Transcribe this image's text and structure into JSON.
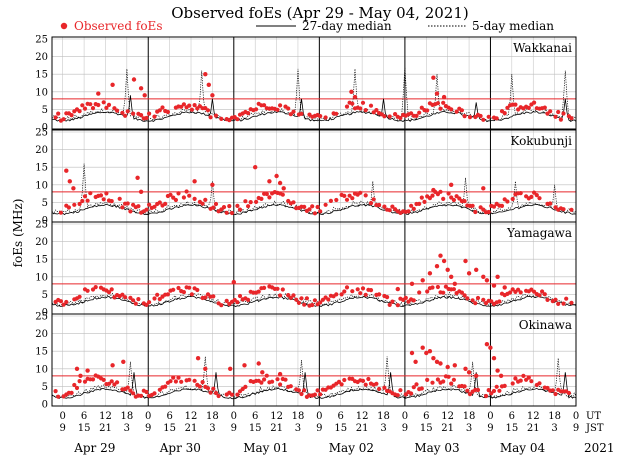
{
  "chart_data": {
    "type": "scatter",
    "title": "Observed foEs (Apr 29 - May 04, 2021)",
    "ylabel": "foEs (MHz)",
    "legend": {
      "observed": "Observed foEs",
      "median27": "27-day median",
      "median5": "5-day median"
    },
    "colors": {
      "observed": "#e8262a",
      "reference_line": "#e8262a",
      "median27": "#000000",
      "median5": "#000000",
      "grid": "#bdbdbd"
    },
    "ylim": [
      0,
      25
    ],
    "yticks": [
      0,
      5,
      10,
      15,
      20,
      25
    ],
    "reference_line_mhz": 8,
    "days": [
      "Apr 29",
      "Apr 30",
      "May 01",
      "May 02",
      "May 03",
      "May 04"
    ],
    "year_label": "2021",
    "ut_label": "UT",
    "jst_label": "JST",
    "ut_ticks": [
      "0",
      "6",
      "12",
      "18",
      "0",
      "6",
      "12",
      "18",
      "0",
      "6",
      "12",
      "18",
      "0",
      "6",
      "12",
      "18",
      "0",
      "6",
      "12",
      "18",
      "0",
      "6",
      "12",
      "18",
      "0"
    ],
    "jst_ticks": [
      "9",
      "15",
      "21",
      "3",
      "9",
      "15",
      "21",
      "3",
      "9",
      "15",
      "21",
      "3",
      "9",
      "15",
      "21",
      "3",
      "9",
      "15",
      "21",
      "3",
      "9",
      "15",
      "21",
      "3",
      "9"
    ],
    "x_axis": {
      "unit": "hours UT from 2021-04-29 00:00",
      "range": [
        -3,
        144
      ]
    },
    "stations": [
      {
        "name": "Wakkanai",
        "observed_spikes": [
          {
            "t": 10,
            "v": 9.5
          },
          {
            "t": 14,
            "v": 12
          },
          {
            "t": 20,
            "v": 13.5
          },
          {
            "t": 22,
            "v": 11
          },
          {
            "t": 23,
            "v": 9
          },
          {
            "t": 40,
            "v": 15
          },
          {
            "t": 41,
            "v": 12
          },
          {
            "t": 42,
            "v": 9
          },
          {
            "t": 81,
            "v": 10
          },
          {
            "t": 82,
            "v": 8.5
          },
          {
            "t": 104,
            "v": 14
          },
          {
            "t": 105,
            "v": 9.5
          },
          {
            "t": 107,
            "v": 8.5
          }
        ],
        "median5_spikes": [
          {
            "t": 18,
            "v": 16.5
          },
          {
            "t": 39,
            "v": 16
          },
          {
            "t": 66,
            "v": 16.5
          },
          {
            "t": 82,
            "v": 16.5
          },
          {
            "t": 96,
            "v": 17
          },
          {
            "t": 105,
            "v": 15
          },
          {
            "t": 126,
            "v": 15
          },
          {
            "t": 141,
            "v": 16
          }
        ],
        "median27_spikes": [
          {
            "t": 19,
            "v": 9
          },
          {
            "t": 42,
            "v": 8
          },
          {
            "t": 67,
            "v": 8
          },
          {
            "t": 90,
            "v": 8
          },
          {
            "t": 116,
            "v": 7
          },
          {
            "t": 141,
            "v": 8
          }
        ],
        "observed_range": [
          2,
          7
        ]
      },
      {
        "name": "Kokubunji",
        "observed_spikes": [
          {
            "t": 1,
            "v": 14
          },
          {
            "t": 2,
            "v": 11
          },
          {
            "t": 3,
            "v": 9
          },
          {
            "t": 21,
            "v": 12
          },
          {
            "t": 22,
            "v": 8
          },
          {
            "t": 37,
            "v": 11
          },
          {
            "t": 42,
            "v": 10
          },
          {
            "t": 54,
            "v": 15
          },
          {
            "t": 58,
            "v": 11
          },
          {
            "t": 60,
            "v": 12.5
          },
          {
            "t": 61,
            "v": 10.5
          },
          {
            "t": 62,
            "v": 9
          },
          {
            "t": 109,
            "v": 10
          },
          {
            "t": 118,
            "v": 9
          },
          {
            "t": 104,
            "v": 8.5
          }
        ],
        "median5_spikes": [
          {
            "t": 6,
            "v": 16
          },
          {
            "t": 42,
            "v": 11
          },
          {
            "t": 87,
            "v": 11
          },
          {
            "t": 113,
            "v": 12
          },
          {
            "t": 127,
            "v": 11
          },
          {
            "t": 138,
            "v": 10
          }
        ],
        "median27_spikes": [],
        "observed_range": [
          2,
          8
        ]
      },
      {
        "name": "Yamagawa",
        "observed_spikes": [
          {
            "t": 48,
            "v": 8.5
          },
          {
            "t": 94,
            "v": 6.5
          },
          {
            "t": 98,
            "v": 8
          },
          {
            "t": 101,
            "v": 9
          },
          {
            "t": 103,
            "v": 11
          },
          {
            "t": 105,
            "v": 13
          },
          {
            "t": 106,
            "v": 16
          },
          {
            "t": 107,
            "v": 14.5
          },
          {
            "t": 108,
            "v": 12
          },
          {
            "t": 109,
            "v": 10
          },
          {
            "t": 110,
            "v": 8
          },
          {
            "t": 113,
            "v": 14.5
          },
          {
            "t": 114,
            "v": 11
          },
          {
            "t": 116,
            "v": 12
          },
          {
            "t": 118,
            "v": 10
          },
          {
            "t": 119,
            "v": 9
          },
          {
            "t": 121,
            "v": 7.5
          },
          {
            "t": 122,
            "v": 10
          },
          {
            "t": 124,
            "v": 7
          }
        ],
        "median5_spikes": [],
        "median27_spikes": [],
        "observed_range": [
          2,
          7
        ]
      },
      {
        "name": "Okinawa",
        "observed_spikes": [
          {
            "t": 4,
            "v": 10
          },
          {
            "t": 5,
            "v": 8
          },
          {
            "t": 7,
            "v": 9.5
          },
          {
            "t": 14,
            "v": 11
          },
          {
            "t": 17,
            "v": 12
          },
          {
            "t": 38,
            "v": 13
          },
          {
            "t": 40,
            "v": 10
          },
          {
            "t": 47,
            "v": 10
          },
          {
            "t": 51,
            "v": 11
          },
          {
            "t": 55,
            "v": 11.5
          },
          {
            "t": 56,
            "v": 9
          },
          {
            "t": 61,
            "v": 8.5
          },
          {
            "t": 98,
            "v": 14.5
          },
          {
            "t": 99,
            "v": 12
          },
          {
            "t": 101,
            "v": 16
          },
          {
            "t": 102,
            "v": 14.5
          },
          {
            "t": 103,
            "v": 15
          },
          {
            "t": 104,
            "v": 13
          },
          {
            "t": 105,
            "v": 12
          },
          {
            "t": 106,
            "v": 11.5
          },
          {
            "t": 108,
            "v": 10.5
          },
          {
            "t": 110,
            "v": 11
          },
          {
            "t": 113,
            "v": 10
          },
          {
            "t": 114,
            "v": 9
          },
          {
            "t": 116,
            "v": 8
          },
          {
            "t": 119,
            "v": 17
          },
          {
            "t": 120,
            "v": 16
          },
          {
            "t": 121,
            "v": 13
          },
          {
            "t": 122,
            "v": 9.5
          },
          {
            "t": 123,
            "v": 8
          }
        ],
        "median5_spikes": [
          {
            "t": 19,
            "v": 12
          },
          {
            "t": 40,
            "v": 13.5
          },
          {
            "t": 67,
            "v": 12.5
          },
          {
            "t": 91,
            "v": 13.5
          },
          {
            "t": 115,
            "v": 12
          },
          {
            "t": 139,
            "v": 13
          }
        ],
        "median27_spikes": [
          {
            "t": 20,
            "v": 9
          },
          {
            "t": 43,
            "v": 9
          },
          {
            "t": 68,
            "v": 9
          },
          {
            "t": 92,
            "v": 9
          },
          {
            "t": 116,
            "v": 9
          },
          {
            "t": 141,
            "v": 9
          }
        ],
        "observed_range": [
          2,
          8
        ]
      }
    ]
  }
}
